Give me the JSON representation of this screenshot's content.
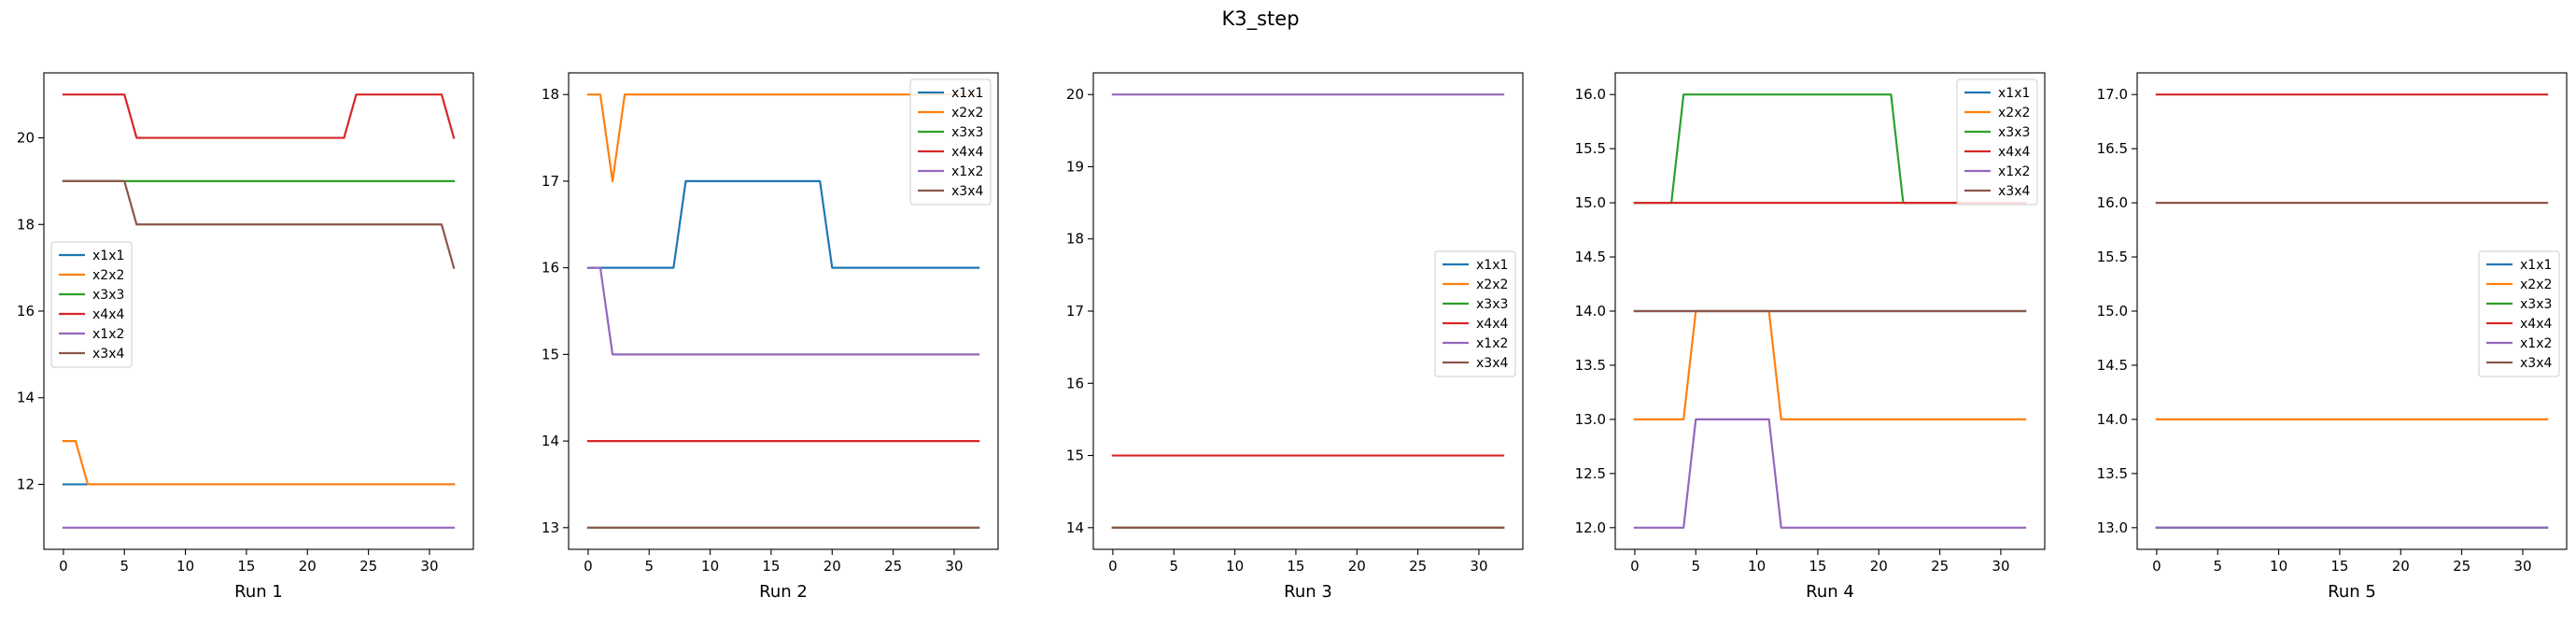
{
  "suptitle": "K3_step",
  "colors": {
    "x1x1": "#1f77b4",
    "x2x2": "#ff7f0e",
    "x3x3": "#2ca02c",
    "x4x4": "#d62728",
    "x1x2": "#9467bd",
    "x3x4": "#8c564b"
  },
  "chart_data": [
    {
      "type": "line",
      "title": "",
      "xlabel": "Run 1",
      "ylabel": "",
      "xlim": [
        -1.6,
        33.6
      ],
      "ylim": [
        10.5,
        21.5
      ],
      "xticks": [
        0,
        5,
        10,
        15,
        20,
        25,
        30
      ],
      "yticks": [
        12,
        14,
        16,
        18,
        20
      ],
      "legend": "center-left",
      "series": [
        {
          "name": "x1x1",
          "values": [
            [
              0,
              12
            ],
            [
              1,
              12
            ],
            [
              2,
              12
            ],
            [
              32,
              12
            ]
          ]
        },
        {
          "name": "x2x2",
          "values": [
            [
              0,
              13
            ],
            [
              1,
              13
            ],
            [
              2,
              12
            ],
            [
              32,
              12
            ]
          ]
        },
        {
          "name": "x3x3",
          "values": [
            [
              0,
              19
            ],
            [
              32,
              19
            ]
          ]
        },
        {
          "name": "x4x4",
          "values": [
            [
              0,
              21
            ],
            [
              5,
              21
            ],
            [
              6,
              20
            ],
            [
              23,
              20
            ],
            [
              24,
              21
            ],
            [
              31,
              21
            ],
            [
              32,
              20
            ]
          ]
        },
        {
          "name": "x1x2",
          "values": [
            [
              0,
              11
            ],
            [
              32,
              11
            ]
          ]
        },
        {
          "name": "x3x4",
          "values": [
            [
              0,
              19
            ],
            [
              5,
              19
            ],
            [
              6,
              18
            ],
            [
              31,
              18
            ],
            [
              32,
              17
            ]
          ]
        }
      ]
    },
    {
      "type": "line",
      "title": "",
      "xlabel": "Run 2",
      "ylabel": "",
      "xlim": [
        -1.6,
        33.6
      ],
      "ylim": [
        12.75,
        18.25
      ],
      "xticks": [
        0,
        5,
        10,
        15,
        20,
        25,
        30
      ],
      "yticks": [
        13,
        14,
        15,
        16,
        17,
        18
      ],
      "legend": "top-right",
      "series": [
        {
          "name": "x1x1",
          "values": [
            [
              0,
              16
            ],
            [
              7,
              16
            ],
            [
              8,
              17
            ],
            [
              19,
              17
            ],
            [
              20,
              16
            ],
            [
              32,
              16
            ]
          ]
        },
        {
          "name": "x2x2",
          "values": [
            [
              0,
              18
            ],
            [
              1,
              18
            ],
            [
              2,
              17
            ],
            [
              3,
              18
            ],
            [
              32,
              18
            ]
          ]
        },
        {
          "name": "x3x3",
          "values": [
            [
              0,
              13
            ],
            [
              32,
              13
            ]
          ]
        },
        {
          "name": "x4x4",
          "values": [
            [
              0,
              14
            ],
            [
              32,
              14
            ]
          ]
        },
        {
          "name": "x1x2",
          "values": [
            [
              0,
              16
            ],
            [
              1,
              16
            ],
            [
              2,
              15
            ],
            [
              32,
              15
            ]
          ]
        },
        {
          "name": "x3x4",
          "values": [
            [
              0,
              13
            ],
            [
              32,
              13
            ]
          ]
        }
      ]
    },
    {
      "type": "line",
      "title": "",
      "xlabel": "Run 3",
      "ylabel": "",
      "xlim": [
        -1.6,
        33.6
      ],
      "ylim": [
        13.7,
        20.3
      ],
      "xticks": [
        0,
        5,
        10,
        15,
        20,
        25,
        30
      ],
      "yticks": [
        14,
        15,
        16,
        17,
        18,
        19,
        20
      ],
      "legend": "center-right",
      "series": [
        {
          "name": "x1x1",
          "values": [
            [
              0,
              14
            ],
            [
              32,
              14
            ]
          ]
        },
        {
          "name": "x2x2",
          "values": [
            [
              0,
              14
            ],
            [
              32,
              14
            ]
          ]
        },
        {
          "name": "x3x3",
          "values": [
            [
              0,
              14
            ],
            [
              32,
              14
            ]
          ]
        },
        {
          "name": "x4x4",
          "values": [
            [
              0,
              15
            ],
            [
              32,
              15
            ]
          ]
        },
        {
          "name": "x1x2",
          "values": [
            [
              0,
              20
            ],
            [
              32,
              20
            ]
          ]
        },
        {
          "name": "x3x4",
          "values": [
            [
              0,
              14
            ],
            [
              32,
              14
            ]
          ]
        }
      ]
    },
    {
      "type": "line",
      "title": "",
      "xlabel": "Run 4",
      "ylabel": "",
      "xlim": [
        -1.6,
        33.6
      ],
      "ylim": [
        11.8,
        16.2
      ],
      "xticks": [
        0,
        5,
        10,
        15,
        20,
        25,
        30
      ],
      "yticks": [
        12.0,
        12.5,
        13.0,
        13.5,
        14.0,
        14.5,
        15.0,
        15.5,
        16.0
      ],
      "legend": "top-right",
      "series": [
        {
          "name": "x1x1",
          "values": [
            [
              0,
              14
            ],
            [
              32,
              14
            ]
          ]
        },
        {
          "name": "x2x2",
          "values": [
            [
              0,
              13
            ],
            [
              4,
              13
            ],
            [
              5,
              14
            ],
            [
              11,
              14
            ],
            [
              12,
              13
            ],
            [
              32,
              13
            ]
          ]
        },
        {
          "name": "x3x3",
          "values": [
            [
              0,
              15
            ],
            [
              3,
              15
            ],
            [
              4,
              16
            ],
            [
              21,
              16
            ],
            [
              22,
              15
            ],
            [
              32,
              15
            ]
          ]
        },
        {
          "name": "x4x4",
          "values": [
            [
              0,
              15
            ],
            [
              32,
              15
            ]
          ]
        },
        {
          "name": "x1x2",
          "values": [
            [
              0,
              12
            ],
            [
              4,
              12
            ],
            [
              5,
              13
            ],
            [
              11,
              13
            ],
            [
              12,
              12
            ],
            [
              32,
              12
            ]
          ]
        },
        {
          "name": "x3x4",
          "values": [
            [
              0,
              14
            ],
            [
              32,
              14
            ]
          ]
        }
      ]
    },
    {
      "type": "line",
      "title": "",
      "xlabel": "Run 5",
      "ylabel": "",
      "xlim": [
        -1.6,
        33.6
      ],
      "ylim": [
        12.8,
        17.2
      ],
      "xticks": [
        0,
        5,
        10,
        15,
        20,
        25,
        30
      ],
      "yticks": [
        13.0,
        13.5,
        14.0,
        14.5,
        15.0,
        15.5,
        16.0,
        16.5,
        17.0
      ],
      "legend": "center-right",
      "series": [
        {
          "name": "x1x1",
          "values": [
            [
              0,
              13
            ],
            [
              32,
              13
            ]
          ]
        },
        {
          "name": "x2x2",
          "values": [
            [
              0,
              14
            ],
            [
              32,
              14
            ]
          ]
        },
        {
          "name": "x3x3",
          "values": [
            [
              0,
              13
            ],
            [
              32,
              13
            ]
          ]
        },
        {
          "name": "x4x4",
          "values": [
            [
              0,
              17
            ],
            [
              32,
              17
            ]
          ]
        },
        {
          "name": "x1x2",
          "values": [
            [
              0,
              13
            ],
            [
              32,
              13
            ]
          ]
        },
        {
          "name": "x3x4",
          "values": [
            [
              0,
              16
            ],
            [
              32,
              16
            ]
          ]
        }
      ]
    }
  ]
}
